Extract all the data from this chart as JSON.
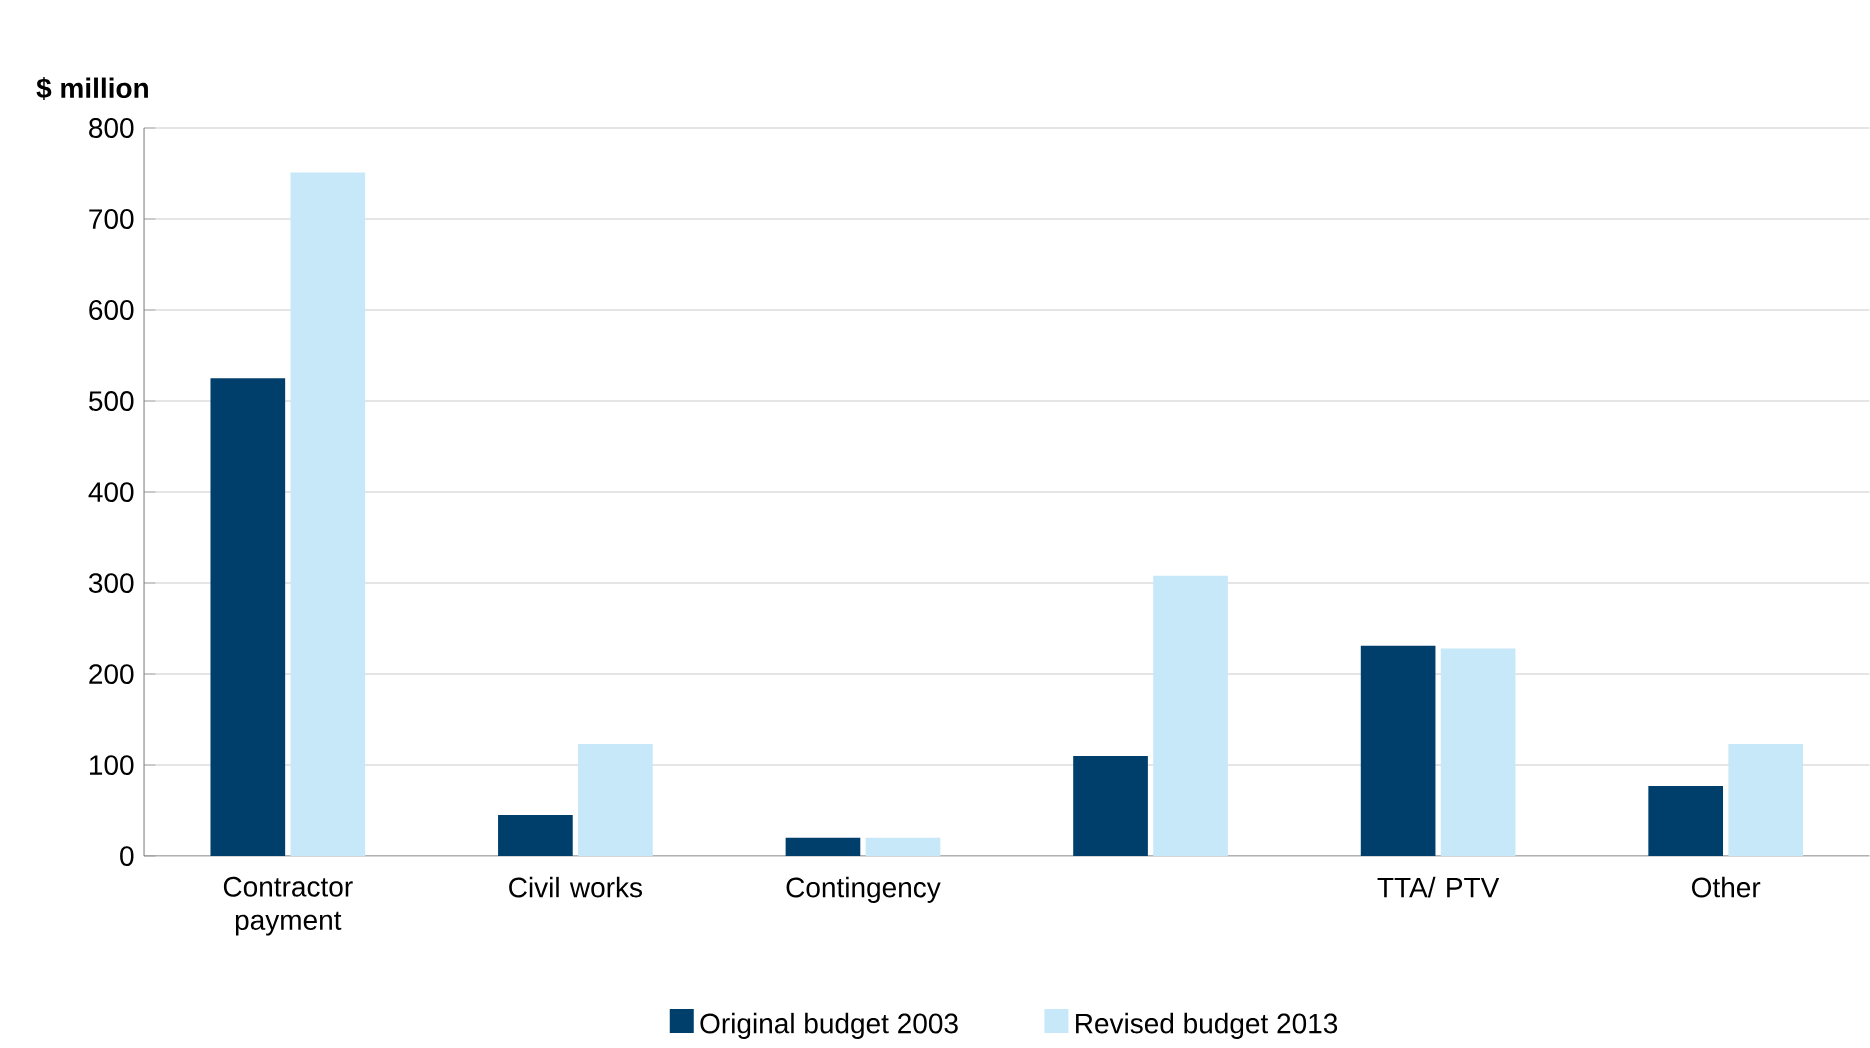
{
  "chart_data": {
    "type": "bar",
    "ylabel": "$ million",
    "categories": [
      "Contractor payment",
      "Civil works",
      "Contingency",
      null,
      "TTA/ PTV",
      "Other"
    ],
    "series": [
      {
        "name": "Original budget 2003",
        "color": "#003f6b",
        "values": [
          525,
          45,
          20,
          110,
          231,
          77
        ]
      },
      {
        "name": "Revised budget 2013",
        "color": "#c6e8f8",
        "values": [
          751,
          123,
          20,
          308,
          228,
          123
        ]
      }
    ],
    "ylim": [
      0,
      800
    ],
    "yticks": [
      0,
      100,
      200,
      300,
      400,
      500,
      600,
      700,
      800
    ],
    "grid": "y",
    "legend": "bottom"
  }
}
